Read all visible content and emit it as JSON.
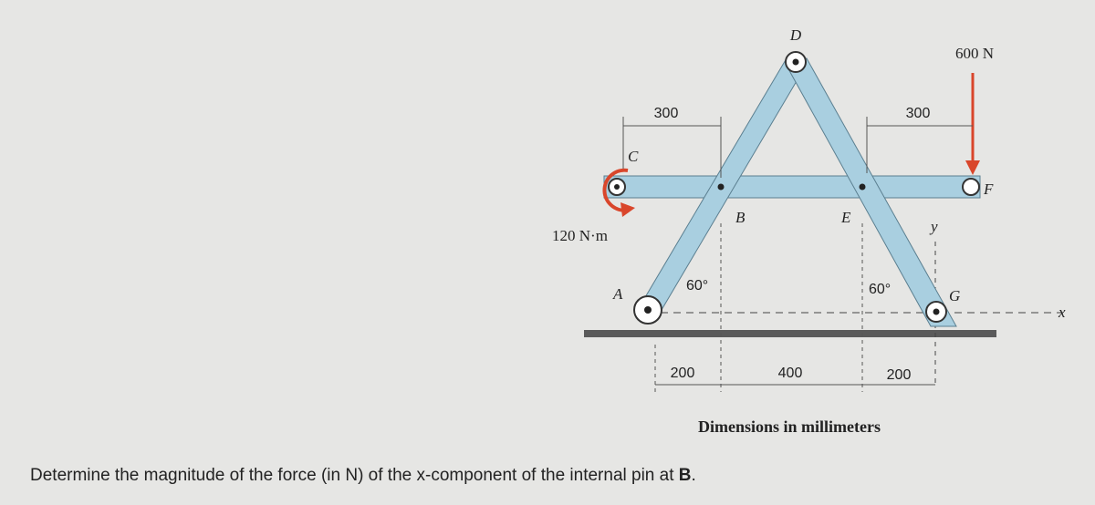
{
  "labels": {
    "D": "D",
    "C": "C",
    "F": "F",
    "B": "B",
    "E": "E",
    "A": "A",
    "G": "G",
    "y": "y",
    "x": "x"
  },
  "force": "600 N",
  "moment": "120 N·m",
  "angles": [
    "60°",
    "60°"
  ],
  "dimensions": {
    "top": [
      "300",
      "300"
    ],
    "bottom": [
      "200",
      "400",
      "200"
    ]
  },
  "note": "Dimensions in millimeters",
  "question": {
    "prefix": "Determine the magnitude of the force (in N) of the x-component of the internal pin at ",
    "bold": "B",
    "suffix": "."
  }
}
